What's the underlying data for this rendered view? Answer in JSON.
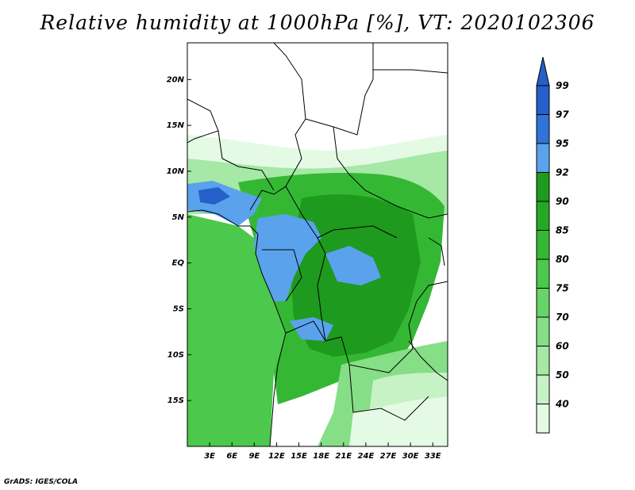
{
  "title": "Relative humidity at 1000hPa [%], VT: 2020102306",
  "credit": "GrADS: IGES/COLA",
  "map": {
    "region": "Central Africa",
    "lon_range": [
      0,
      35
    ],
    "lat_range": [
      -20,
      24
    ],
    "lat_ticks": [
      {
        "value": 20,
        "label": "20N"
      },
      {
        "value": 15,
        "label": "15N"
      },
      {
        "value": 10,
        "label": "10N"
      },
      {
        "value": 5,
        "label": "5N"
      },
      {
        "value": 0,
        "label": "EQ"
      },
      {
        "value": -5,
        "label": "5S"
      },
      {
        "value": -10,
        "label": "10S"
      },
      {
        "value": -15,
        "label": "15S"
      }
    ],
    "lon_ticks": [
      {
        "value": 3,
        "label": "3E"
      },
      {
        "value": 6,
        "label": "6E"
      },
      {
        "value": 9,
        "label": "9E"
      },
      {
        "value": 12,
        "label": "12E"
      },
      {
        "value": 15,
        "label": "15E"
      },
      {
        "value": 18,
        "label": "18E"
      },
      {
        "value": 21,
        "label": "21E"
      },
      {
        "value": 24,
        "label": "24E"
      },
      {
        "value": 27,
        "label": "27E"
      },
      {
        "value": 30,
        "label": "30E"
      },
      {
        "value": 33,
        "label": "33E"
      }
    ]
  },
  "colorbar": {
    "levels": [
      {
        "label": "99",
        "color": "#2560c8"
      },
      {
        "label": "97",
        "color": "#2f74d6"
      },
      {
        "label": "95",
        "color": "#5aa2ec"
      },
      {
        "label": "92",
        "color": "#1e9a1e"
      },
      {
        "label": "90",
        "color": "#26a826"
      },
      {
        "label": "85",
        "color": "#34b834"
      },
      {
        "label": "80",
        "color": "#4cc84c"
      },
      {
        "label": "75",
        "color": "#66d466"
      },
      {
        "label": "70",
        "color": "#86de86"
      },
      {
        "label": "60",
        "color": "#a6e8a6"
      },
      {
        "label": "50",
        "color": "#c6f2c6"
      },
      {
        "label": "40",
        "color": "#e4fae4"
      }
    ],
    "below_color": "#ffffff"
  }
}
